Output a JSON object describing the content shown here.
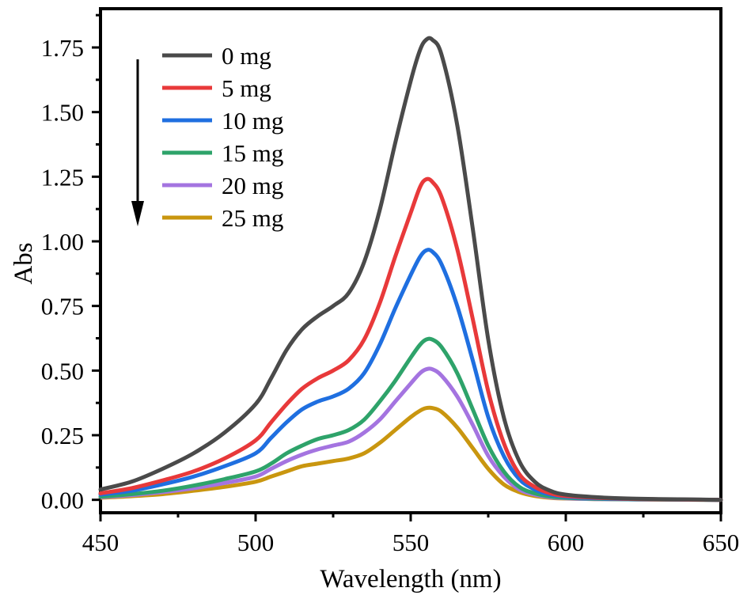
{
  "chart_data": {
    "type": "line",
    "title": "",
    "xlabel": "Wavelength (nm)",
    "ylabel": "Abs",
    "xlim": [
      450,
      650
    ],
    "ylim": [
      -0.05,
      1.9
    ],
    "xticks": [
      450,
      500,
      550,
      600,
      650
    ],
    "xtick_labels": [
      "450",
      "500",
      "550",
      "600",
      "650"
    ],
    "yticks": [
      0.0,
      0.25,
      0.5,
      0.75,
      1.0,
      1.25,
      1.5,
      1.75
    ],
    "ytick_labels": [
      "0.00",
      "0.25",
      "0.50",
      "0.75",
      "1.00",
      "1.25",
      "1.50",
      "1.75"
    ],
    "grid": false,
    "legend_position": "top-left",
    "annotation": "downward arrow indicating decreasing absorbance with increasing dose",
    "x": [
      450,
      460,
      470,
      480,
      490,
      500,
      505,
      510,
      515,
      520,
      525,
      530,
      535,
      540,
      545,
      550,
      553,
      555,
      557,
      560,
      565,
      570,
      575,
      580,
      585,
      590,
      595,
      600,
      610,
      620,
      630,
      650
    ],
    "series": [
      {
        "name": "0 mg",
        "color": "#4a4a4a",
        "values": [
          0.04,
          0.07,
          0.12,
          0.18,
          0.26,
          0.37,
          0.47,
          0.58,
          0.66,
          0.71,
          0.75,
          0.8,
          0.92,
          1.12,
          1.38,
          1.62,
          1.74,
          1.78,
          1.78,
          1.72,
          1.45,
          1.05,
          0.62,
          0.32,
          0.15,
          0.07,
          0.035,
          0.02,
          0.01,
          0.005,
          0.003,
          0.0
        ]
      },
      {
        "name": "5 mg",
        "color": "#e8393a",
        "values": [
          0.025,
          0.045,
          0.075,
          0.11,
          0.16,
          0.23,
          0.3,
          0.37,
          0.43,
          0.47,
          0.5,
          0.54,
          0.62,
          0.76,
          0.94,
          1.11,
          1.21,
          1.24,
          1.23,
          1.17,
          0.97,
          0.7,
          0.42,
          0.22,
          0.1,
          0.05,
          0.025,
          0.015,
          0.008,
          0.004,
          0.002,
          0.0
        ]
      },
      {
        "name": "10 mg",
        "color": "#1f6fe0",
        "values": [
          0.02,
          0.035,
          0.06,
          0.09,
          0.13,
          0.18,
          0.24,
          0.3,
          0.35,
          0.38,
          0.4,
          0.43,
          0.49,
          0.6,
          0.74,
          0.87,
          0.94,
          0.965,
          0.96,
          0.91,
          0.75,
          0.54,
          0.32,
          0.17,
          0.08,
          0.04,
          0.02,
          0.012,
          0.006,
          0.003,
          0.002,
          0.0
        ]
      },
      {
        "name": "15 mg",
        "color": "#2ea36a",
        "values": [
          0.012,
          0.022,
          0.035,
          0.055,
          0.08,
          0.11,
          0.14,
          0.18,
          0.21,
          0.235,
          0.25,
          0.27,
          0.31,
          0.38,
          0.46,
          0.55,
          0.6,
          0.62,
          0.62,
          0.59,
          0.49,
          0.35,
          0.21,
          0.11,
          0.05,
          0.025,
          0.013,
          0.008,
          0.004,
          0.002,
          0.001,
          0.0
        ]
      },
      {
        "name": "20 mg",
        "color": "#a474e0",
        "values": [
          0.01,
          0.018,
          0.03,
          0.045,
          0.065,
          0.09,
          0.12,
          0.15,
          0.175,
          0.195,
          0.21,
          0.225,
          0.26,
          0.31,
          0.38,
          0.45,
          0.49,
          0.505,
          0.505,
          0.48,
          0.4,
          0.29,
          0.17,
          0.09,
          0.04,
          0.02,
          0.01,
          0.006,
          0.003,
          0.002,
          0.001,
          0.0
        ]
      },
      {
        "name": "25 mg",
        "color": "#c9960f",
        "values": [
          0.008,
          0.014,
          0.022,
          0.035,
          0.05,
          0.07,
          0.09,
          0.11,
          0.13,
          0.14,
          0.15,
          0.16,
          0.18,
          0.22,
          0.27,
          0.32,
          0.345,
          0.355,
          0.355,
          0.34,
          0.28,
          0.2,
          0.12,
          0.06,
          0.03,
          0.015,
          0.008,
          0.005,
          0.003,
          0.002,
          0.001,
          0.0
        ]
      }
    ]
  }
}
